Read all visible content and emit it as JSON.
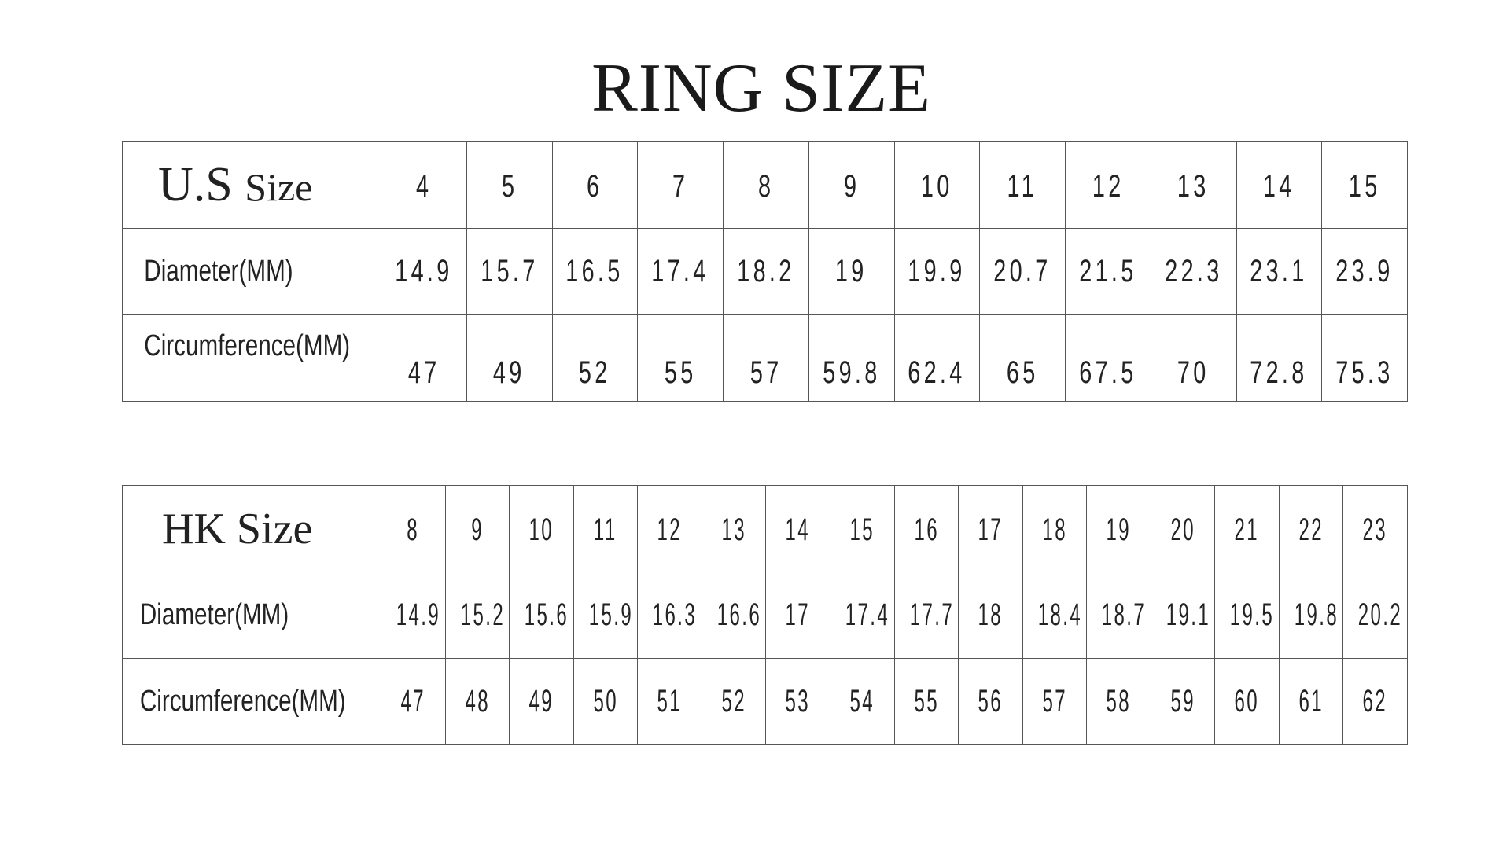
{
  "title": "RING SIZE",
  "us": {
    "size_label_main": "U.S",
    "size_label_small": "Size",
    "sizes": [
      "4",
      "5",
      "6",
      "7",
      "8",
      "9",
      "10",
      "11",
      "12",
      "13",
      "14",
      "15"
    ],
    "diameter_label": "Diameter(MM)",
    "diameter": [
      "14.9",
      "15.7",
      "16.5",
      "17.4",
      "18.2",
      "19",
      "19.9",
      "20.7",
      "21.5",
      "22.3",
      "23.1",
      "23.9"
    ],
    "circumference_label": "Circumference(MM)",
    "circumference": [
      "47",
      "49",
      "52",
      "55",
      "57",
      "59.8",
      "62.4",
      "65",
      "67.5",
      "70",
      "72.8",
      "75.3"
    ]
  },
  "hk": {
    "size_label": "HK Size",
    "sizes": [
      "8",
      "9",
      "10",
      "11",
      "12",
      "13",
      "14",
      "15",
      "16",
      "17",
      "18",
      "19",
      "20",
      "21",
      "22",
      "23"
    ],
    "diameter_label": "Diameter(MM)",
    "diameter": [
      "14.9",
      "15.2",
      "15.6",
      "15.9",
      "16.3",
      "16.6",
      "17",
      "17.4",
      "17.7",
      "18",
      "18.4",
      "18.7",
      "19.1",
      "19.5",
      "19.8",
      "20.2"
    ],
    "circumference_label": "Circumference(MM)",
    "circumference": [
      "47",
      "48",
      "49",
      "50",
      "51",
      "52",
      "53",
      "54",
      "55",
      "56",
      "57",
      "58",
      "59",
      "60",
      "61",
      "62"
    ]
  }
}
